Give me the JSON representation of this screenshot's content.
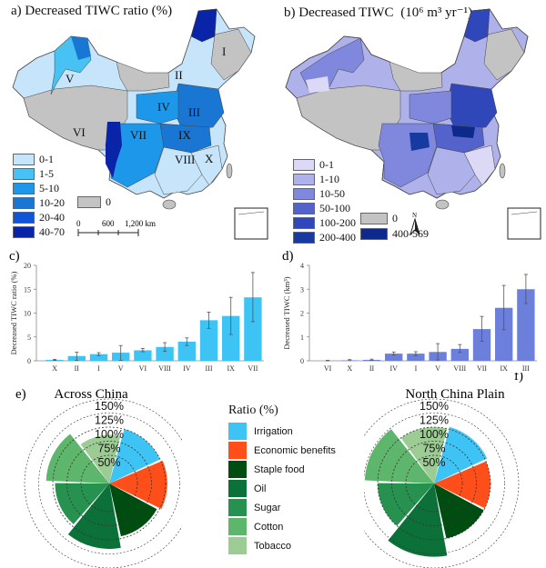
{
  "panels": {
    "a": {
      "label": "a)",
      "title": "Decreased TIWC ratio (%)",
      "region_labels": [
        "I",
        "II",
        "III",
        "IV",
        "V",
        "VI",
        "VII",
        "VIII",
        "IX",
        "X"
      ],
      "legend": [
        {
          "label": "0-1",
          "color": "#c6e4fa"
        },
        {
          "label": "1-5",
          "color": "#47c2f2"
        },
        {
          "label": "5-10",
          "color": "#1c97ea"
        },
        {
          "label": "10-20",
          "color": "#1976d2"
        },
        {
          "label": "20-40",
          "color": "#1254d6"
        },
        {
          "label": "40-70",
          "color": "#0a24a8"
        }
      ],
      "zero_legend": {
        "label": "0",
        "color": "#c3c3c3"
      },
      "scale_bar": {
        "ticks": [
          "0",
          "600",
          "1,200 km"
        ]
      }
    },
    "b": {
      "label": "b)",
      "title_main": "Decreased TIWC",
      "title_unit": "(10⁶ m³ yr⁻¹)",
      "legend": [
        {
          "label": "0-1",
          "color": "#dcd9f6"
        },
        {
          "label": "1-10",
          "color": "#aeb1ea"
        },
        {
          "label": "10-50",
          "color": "#7f88dc"
        },
        {
          "label": "50-100",
          "color": "#5463cc"
        },
        {
          "label": "100-200",
          "color": "#2f47b8"
        },
        {
          "label": "200-400",
          "color": "#173aa0"
        }
      ],
      "zero_legend": {
        "label": "0",
        "color": "#c3c3c3"
      },
      "max_legend": {
        "label": "400-569",
        "color": "#0d2a8a"
      },
      "north_arrow": "N"
    }
  },
  "chart_data": [
    {
      "panel": "c)",
      "type": "bar",
      "title": "",
      "xlabel": "",
      "ylabel": "Decreased TIWC ratio (%)",
      "categories": [
        "X",
        "II",
        "I",
        "V",
        "VI",
        "VIII",
        "IV",
        "III",
        "IX",
        "VII"
      ],
      "values": [
        0.2,
        1.0,
        1.4,
        1.7,
        2.2,
        2.9,
        4.0,
        8.5,
        9.4,
        13.3
      ],
      "error_low": [
        0.1,
        0.1,
        1.1,
        0.1,
        1.9,
        2.0,
        3.2,
        6.8,
        5.5,
        8.2
      ],
      "error_high": [
        0.3,
        1.8,
        1.7,
        3.2,
        2.6,
        3.8,
        4.8,
        10.2,
        13.3,
        18.5
      ],
      "ylim": [
        0,
        20
      ],
      "yticks": [
        0,
        5,
        10,
        15,
        20
      ],
      "color": "#3ec3f5",
      "grid": false
    },
    {
      "panel": "d)",
      "type": "bar",
      "title": "",
      "xlabel": "",
      "ylabel": "Decreased TIWC (km³)",
      "categories": [
        "VI",
        "X",
        "II",
        "IV",
        "I",
        "V",
        "VIII",
        "VII",
        "IX",
        "III"
      ],
      "values": [
        0.0,
        0.02,
        0.04,
        0.3,
        0.3,
        0.37,
        0.5,
        1.33,
        2.22,
        3.0
      ],
      "error_low": [
        0.0,
        0.01,
        0.02,
        0.24,
        0.22,
        0.03,
        0.35,
        0.82,
        1.3,
        2.4
      ],
      "error_high": [
        0.02,
        0.05,
        0.07,
        0.37,
        0.38,
        0.72,
        0.68,
        1.86,
        3.16,
        3.62
      ],
      "ylim": [
        0,
        4
      ],
      "yticks": [
        0,
        1,
        2,
        3,
        4
      ],
      "color": "#6b7fdb",
      "grid": false
    },
    {
      "panel": "e)",
      "type": "polar-bar",
      "title": "Across China",
      "legend_title": "Ratio (%)",
      "radial_ticks": [
        "50%",
        "75%",
        "100%",
        "125%",
        "150%"
      ],
      "radial_tick_values": [
        50,
        75,
        100,
        125,
        150
      ],
      "categories": [
        "Irrigation",
        "Economic benefits",
        "Staple food",
        "Oil",
        "Sugar",
        "Cotton",
        "Tobacco"
      ],
      "values": [
        100,
        103,
        96,
        116,
        96,
        112,
        86
      ],
      "colors": [
        "#3ec3f5",
        "#fe4f1a",
        "#004d12",
        "#0b7139",
        "#279150",
        "#5db66b",
        "#9ccc93"
      ]
    },
    {
      "panel": "f)",
      "type": "polar-bar",
      "title": "North China Plain",
      "legend_title": "Ratio (%)",
      "radial_ticks": [
        "50%",
        "75%",
        "100%",
        "125%",
        "150%"
      ],
      "radial_tick_values": [
        50,
        75,
        100,
        125,
        150
      ],
      "categories": [
        "Irrigation",
        "Economic benefits",
        "Staple food",
        "Oil",
        "Sugar",
        "Cotton",
        "Tobacco"
      ],
      "values": [
        104,
        100,
        100,
        130,
        100,
        123,
        100
      ],
      "colors": [
        "#3ec3f5",
        "#fe4f1a",
        "#004d12",
        "#0b7139",
        "#279150",
        "#5db66b",
        "#9ccc93"
      ]
    }
  ],
  "polar_legend": {
    "title": "Ratio (%)",
    "items": [
      {
        "label": "Irrigation",
        "color": "#3ec3f5"
      },
      {
        "label": "Economic benefits",
        "color": "#fe4f1a"
      },
      {
        "label": "Staple food",
        "color": "#004d12"
      },
      {
        "label": "Oil",
        "color": "#0b7139"
      },
      {
        "label": "Sugar",
        "color": "#279150"
      },
      {
        "label": "Cotton",
        "color": "#5db66b"
      },
      {
        "label": "Tobacco",
        "color": "#9ccc93"
      }
    ]
  }
}
